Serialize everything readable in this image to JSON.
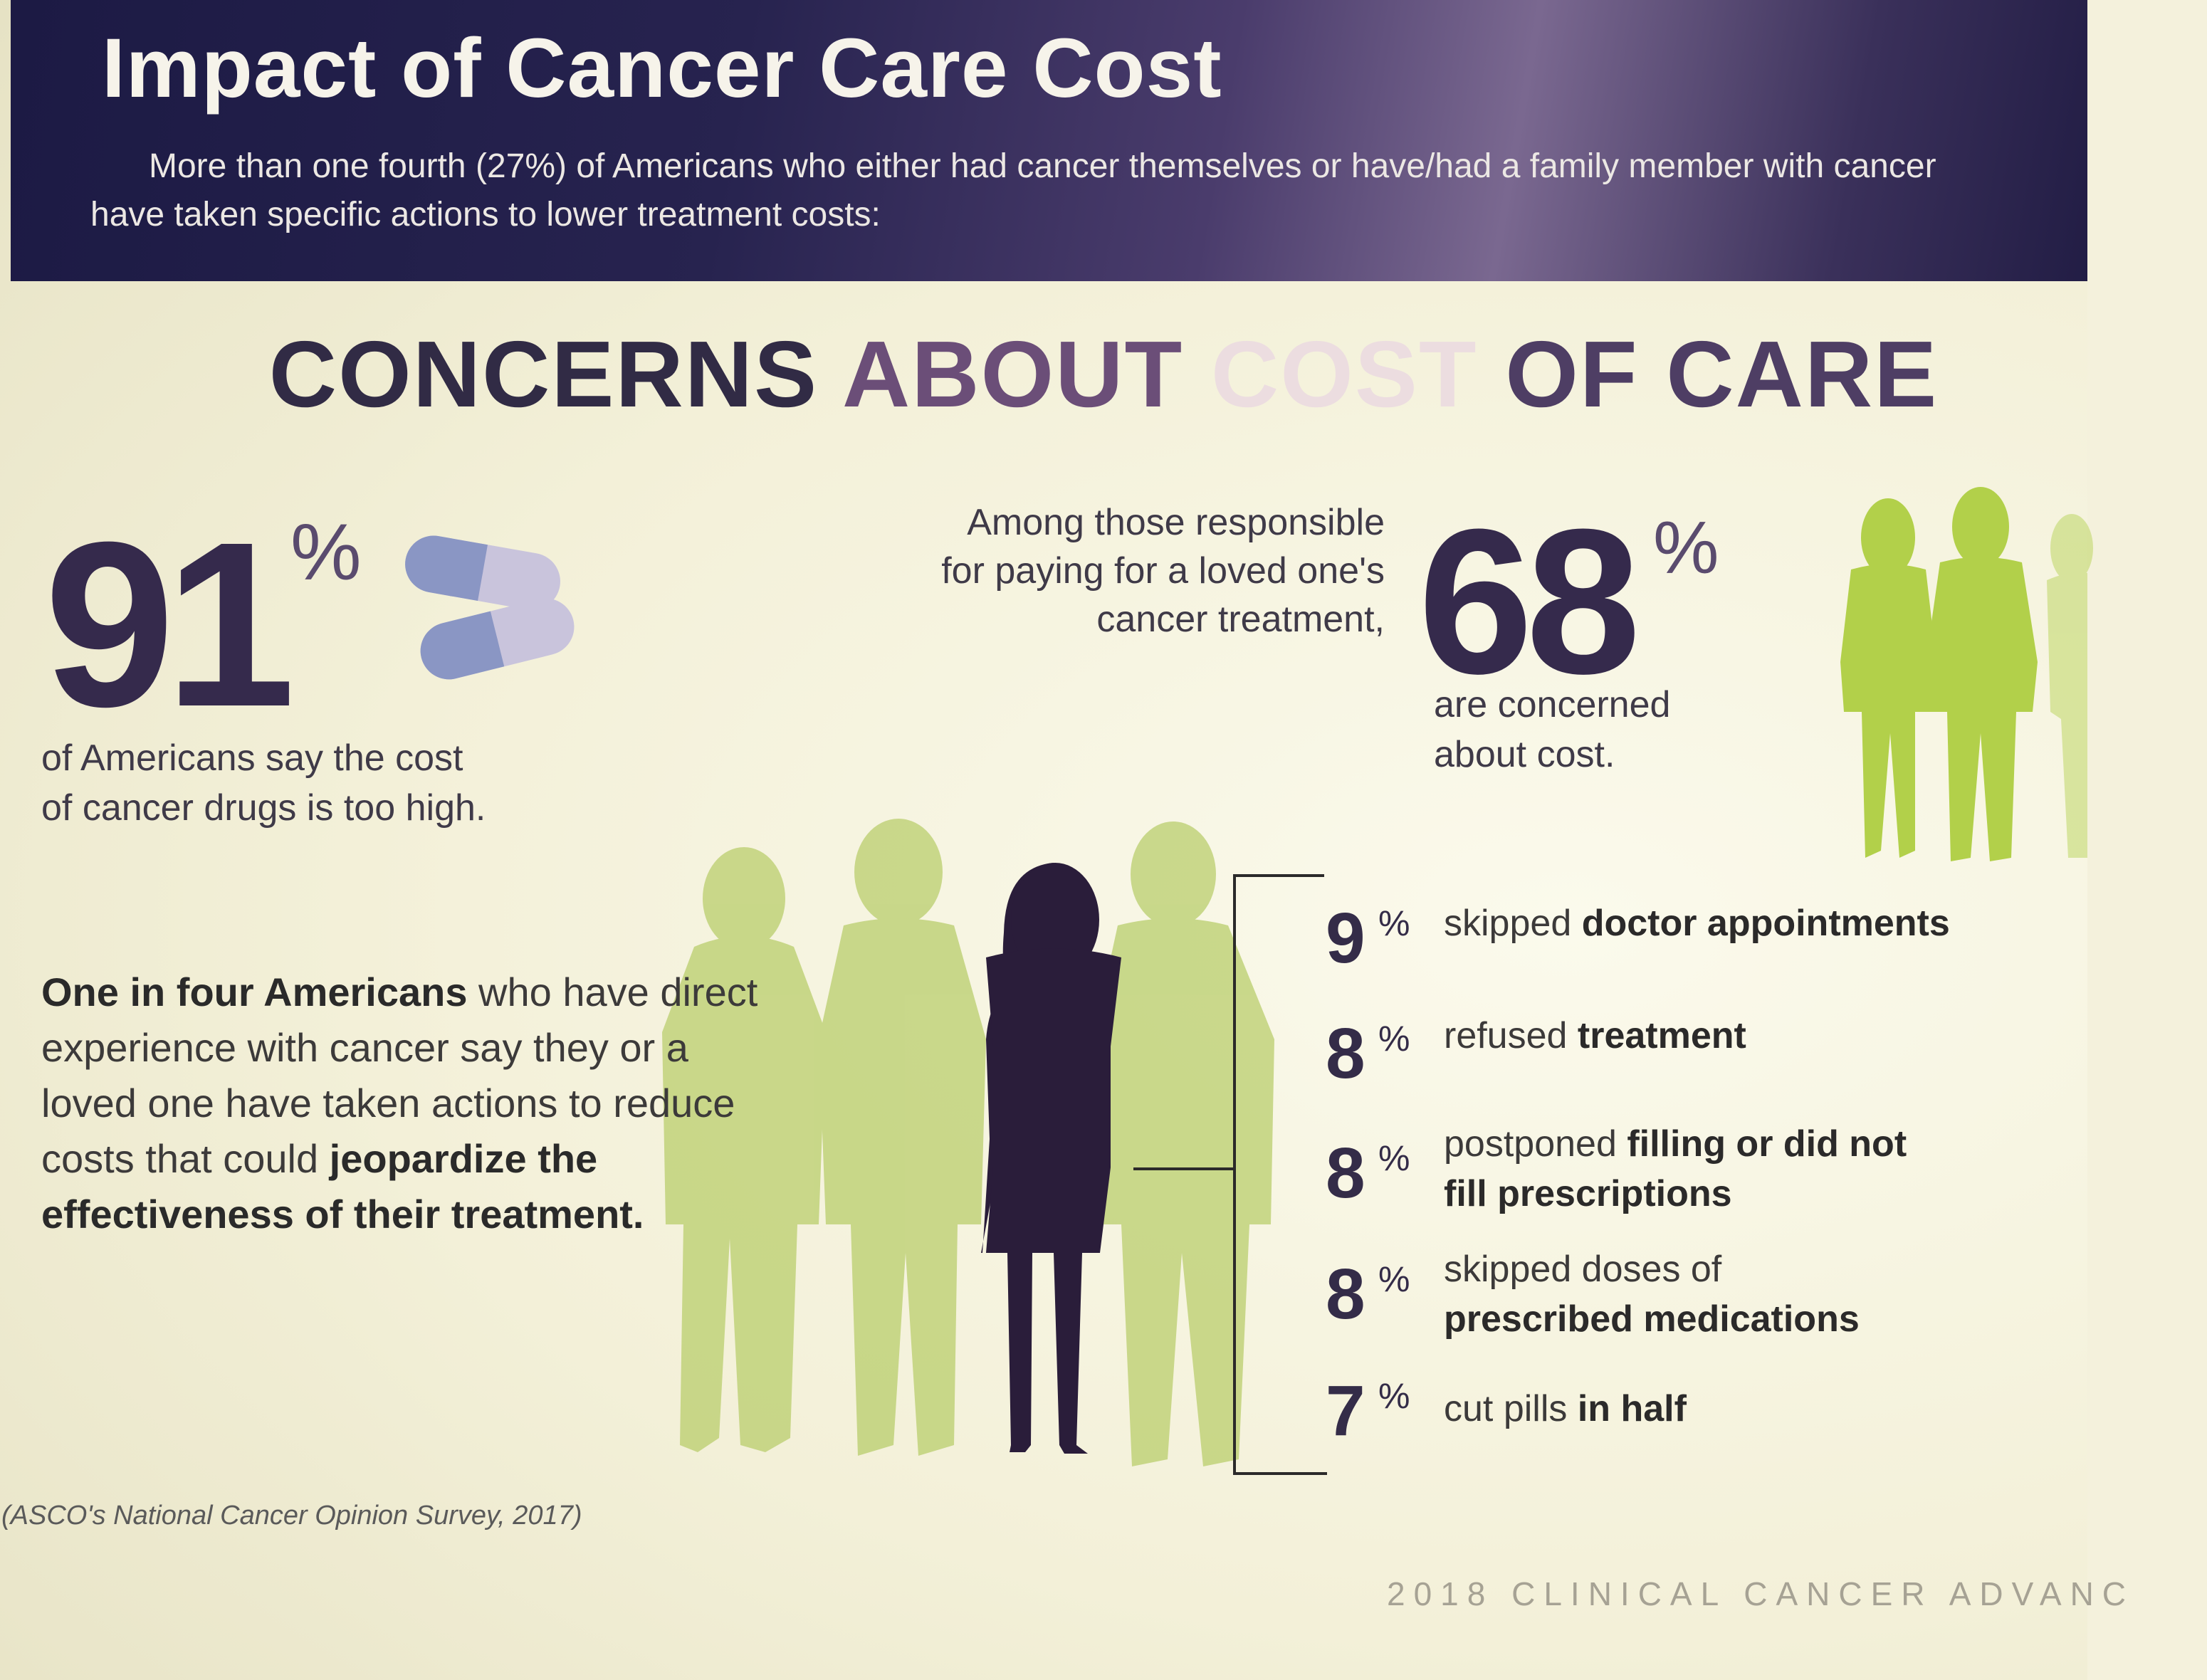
{
  "header": {
    "title": "Impact of Cancer Care Cost",
    "intro": "More than one fourth (27%) of Americans who either had cancer themselves or have/had a family member with cancer have taken specific actions to lower treatment costs:"
  },
  "section_title": {
    "w1": "CONCERNS",
    "w2": "ABOUT",
    "w3": "COST",
    "w4": "OF CARE"
  },
  "stat_91": {
    "value": "91",
    "unit": "%",
    "line1": "of Americans say the cost",
    "line2": "of cancer drugs is too high."
  },
  "stat_68": {
    "lead1": "Among those responsible",
    "lead2": "for paying for a loved one's",
    "lead3": "cancer treatment,",
    "value": "68",
    "unit": "%",
    "line1": "are concerned",
    "line2": "about cost."
  },
  "paragraph": {
    "b1": "One in four Americans",
    "t1": " who have direct experience with cancer say they or a loved one have taken actions to reduce costs that could ",
    "b2": "jeopardize the effectiveness of their treatment."
  },
  "actions": [
    {
      "value": "9",
      "unit": "%",
      "plain": "skipped ",
      "bold": "doctor appointments"
    },
    {
      "value": "8",
      "unit": "%",
      "plain": "refused ",
      "bold": "treatment"
    },
    {
      "value": "8",
      "unit": "%",
      "plain": "postponed ",
      "bold": "filling or did not fill prescriptions"
    },
    {
      "value": "8",
      "unit": "%",
      "plain": "skipped doses of ",
      "bold": "prescribed medications"
    },
    {
      "value": "7",
      "unit": "%",
      "plain": "cut pills ",
      "bold": "in half"
    }
  ],
  "source": "(ASCO's National Cancer Opinion Survey, 2017)",
  "footer": "2018 CLINICAL CANCER ADVANC",
  "colors": {
    "header_band": "#221d45",
    "silhouette_green": "#b7cc6a",
    "silhouette_dark": "#2a1d3a",
    "accent_purple": "#352a4c",
    "pill_blue": "#8a96c4",
    "pill_light": "#c9c4dc"
  },
  "icons": {
    "pills": "capsule-pills-icon",
    "people": "person-silhouette-icon"
  }
}
